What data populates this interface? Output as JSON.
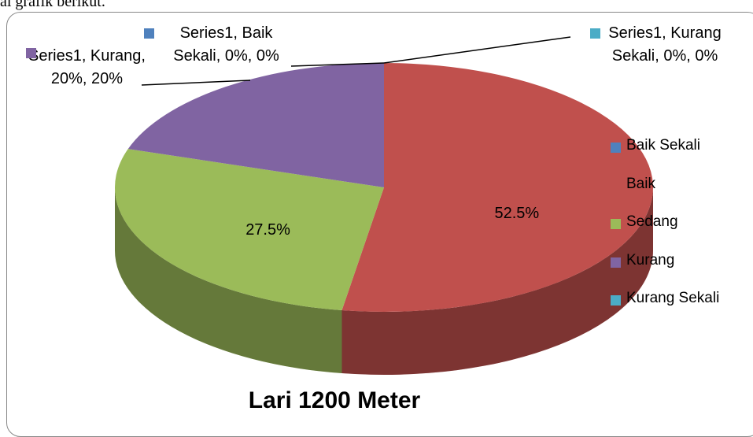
{
  "document_text": "ai grafik berikut.",
  "chart_data": {
    "type": "pie",
    "title": "Lari 1200 Meter",
    "categories": [
      "Baik Sekali",
      "Baik",
      "Sedang",
      "Kurang",
      "Kurang Sekali"
    ],
    "series": [
      {
        "name": "Series1",
        "colors": [
          "#4f81bd",
          "#c0504d",
          "#9bbb59",
          "#8064a2",
          "#4bacc6"
        ],
        "values": [
          0,
          52.5,
          27.5,
          20,
          0
        ],
        "value_labels": [
          "Series1, Baik Sekali, 0%, 0%",
          "52.5%",
          "27.5%",
          "Series1, Kurang, 20%, 20%",
          "Series1, Kurang Sekali, 0%, 0%"
        ]
      }
    ],
    "legend": "right"
  }
}
